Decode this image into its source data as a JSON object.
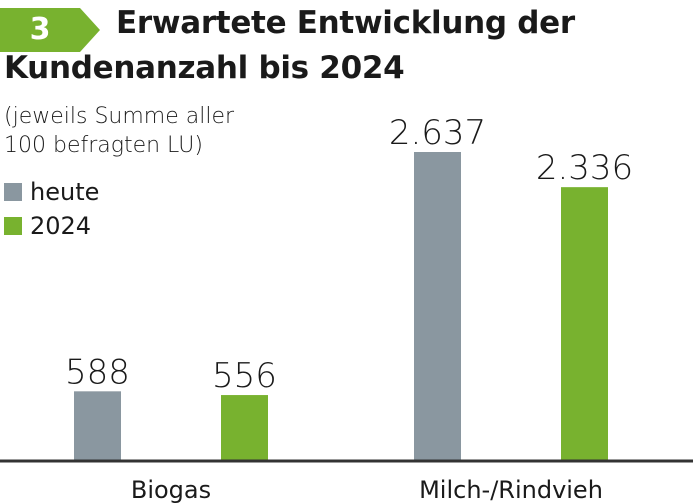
{
  "badge": {
    "number": "3"
  },
  "header": {
    "title_line1": "Erwartete Entwicklung der",
    "title_line2": "Kundenanzahl bis 2024"
  },
  "subtitle": {
    "line1": "(jeweils Summe aller",
    "line2": "100 befragten LU)"
  },
  "colors": {
    "accent": "#78b22f",
    "gray": "#8a97a0",
    "axis": "#333333"
  },
  "chart_data": {
    "type": "bar",
    "title": "Erwartete Entwicklung der Kundenanzahl bis 2024",
    "subtitle": "(jeweils Summe aller 100 befragten LU)",
    "categories": [
      "Biogas",
      "Milch-/Rindvieh"
    ],
    "series": [
      {
        "name": "heute",
        "color": "#8a97a0",
        "values": [
          588,
          2637
        ],
        "labels": [
          "588",
          "2.637"
        ]
      },
      {
        "name": "2024",
        "color": "#78b22f",
        "values": [
          556,
          2336
        ],
        "labels": [
          "556",
          "2.336"
        ]
      }
    ],
    "ylim": [
      0,
      2637
    ],
    "xlabel": "",
    "ylabel": "",
    "grid": false,
    "legend": "top-left"
  }
}
